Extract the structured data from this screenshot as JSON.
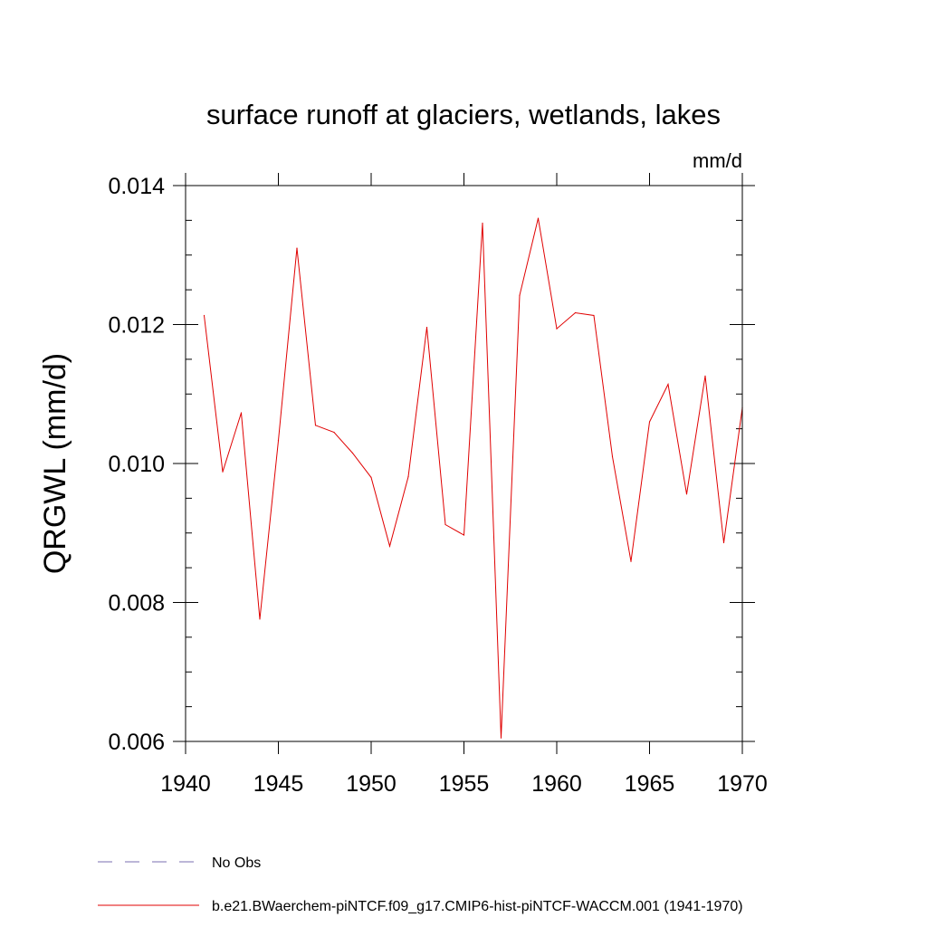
{
  "chart_data": {
    "type": "line",
    "title": "surface runoff at glaciers, wetlands, lakes",
    "units": "mm/d",
    "ylabel": "QRGWL  (mm/d)",
    "xlabel": "",
    "xlim": [
      1940,
      1970
    ],
    "ylim": [
      0.006,
      0.014
    ],
    "xticks": [
      1940,
      1945,
      1950,
      1955,
      1960,
      1965,
      1970
    ],
    "xtick_labels": [
      "1940",
      "1945",
      "1950",
      "1955",
      "1960",
      "1965",
      "1970"
    ],
    "yticks": [
      0.006,
      0.008,
      0.01,
      0.012,
      0.014
    ],
    "ytick_labels": [
      "0.006",
      "0.008",
      "0.010",
      "0.012",
      "0.014"
    ],
    "grid": false,
    "legend_position": "bottom-left",
    "series": [
      {
        "name": "b.e21.BWaerchem-piNTCF.f09_g17.CMIP6-hist-piNTCF-WACCM.001 (1941-1970)",
        "color": "#e00000",
        "dash": "solid",
        "x": [
          1941,
          1942,
          1943,
          1944,
          1945,
          1946,
          1947,
          1948,
          1949,
          1950,
          1951,
          1952,
          1953,
          1954,
          1955,
          1956,
          1957,
          1958,
          1959,
          1960,
          1961,
          1962,
          1963,
          1964,
          1965,
          1966,
          1967,
          1968,
          1969,
          1970
        ],
        "values": [
          0.01213,
          0.00988,
          0.01073,
          0.00776,
          0.01033,
          0.0131,
          0.01055,
          0.01045,
          0.01015,
          0.0098,
          0.00881,
          0.00981,
          0.01196,
          0.00912,
          0.00897,
          0.01346,
          0.00605,
          0.01242,
          0.01353,
          0.01194,
          0.01217,
          0.01213,
          0.0101,
          0.00859,
          0.0106,
          0.01114,
          0.00956,
          0.01126,
          0.00886,
          0.0108
        ]
      }
    ],
    "legend": [
      {
        "label": "No Obs",
        "color": "#7a6fb0",
        "dash": "dashed"
      },
      {
        "label": "b.e21.BWaerchem-piNTCF.f09_g17.CMIP6-hist-piNTCF-WACCM.001 (1941-1970)",
        "color": "#e00000",
        "dash": "solid"
      }
    ]
  }
}
